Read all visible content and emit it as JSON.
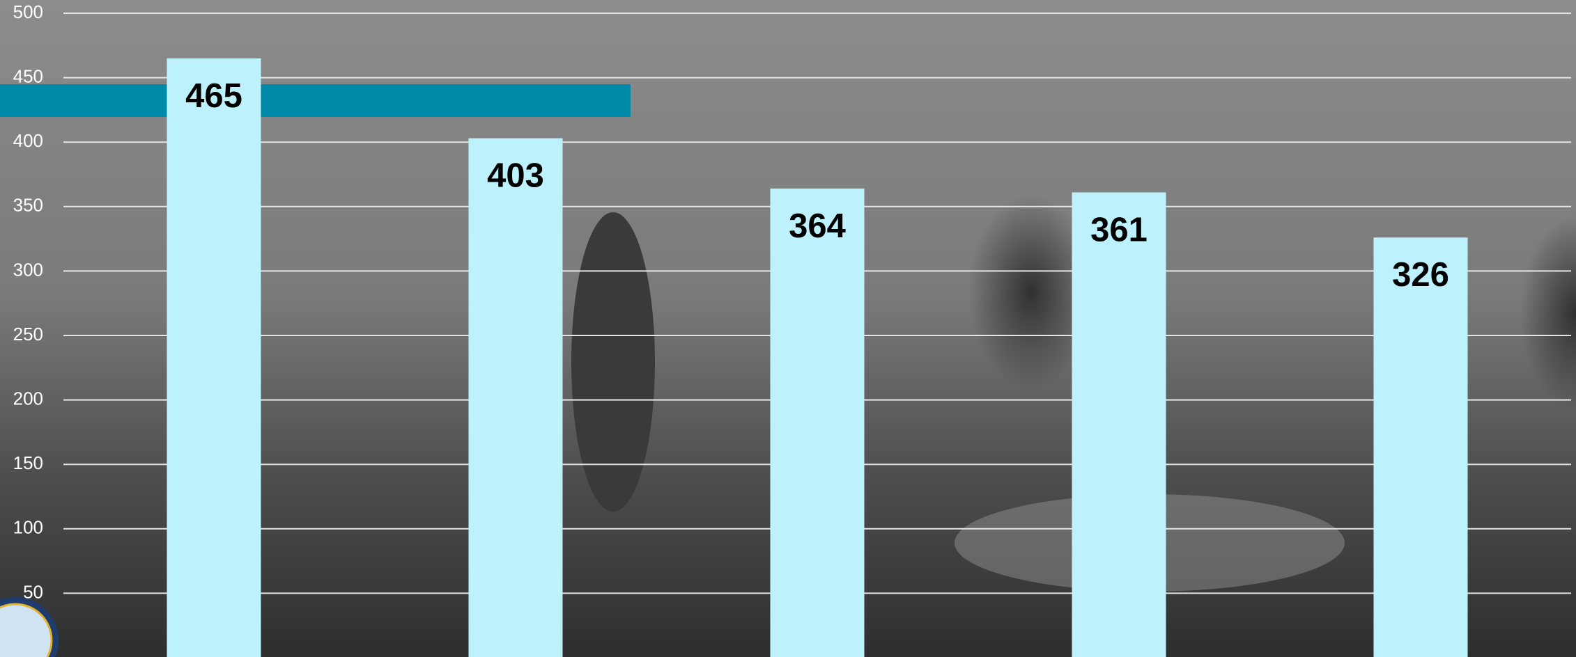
{
  "chart_data": {
    "type": "bar",
    "categories": [
      null,
      null,
      null,
      null,
      null
    ],
    "values": [
      465,
      403,
      364,
      361,
      326
    ],
    "color": "#bdf1fc",
    "ylim": [
      0,
      500
    ],
    "yticks": [
      50,
      100,
      150,
      200,
      250,
      300,
      350,
      400,
      450,
      500
    ],
    "grid": true
  }
}
